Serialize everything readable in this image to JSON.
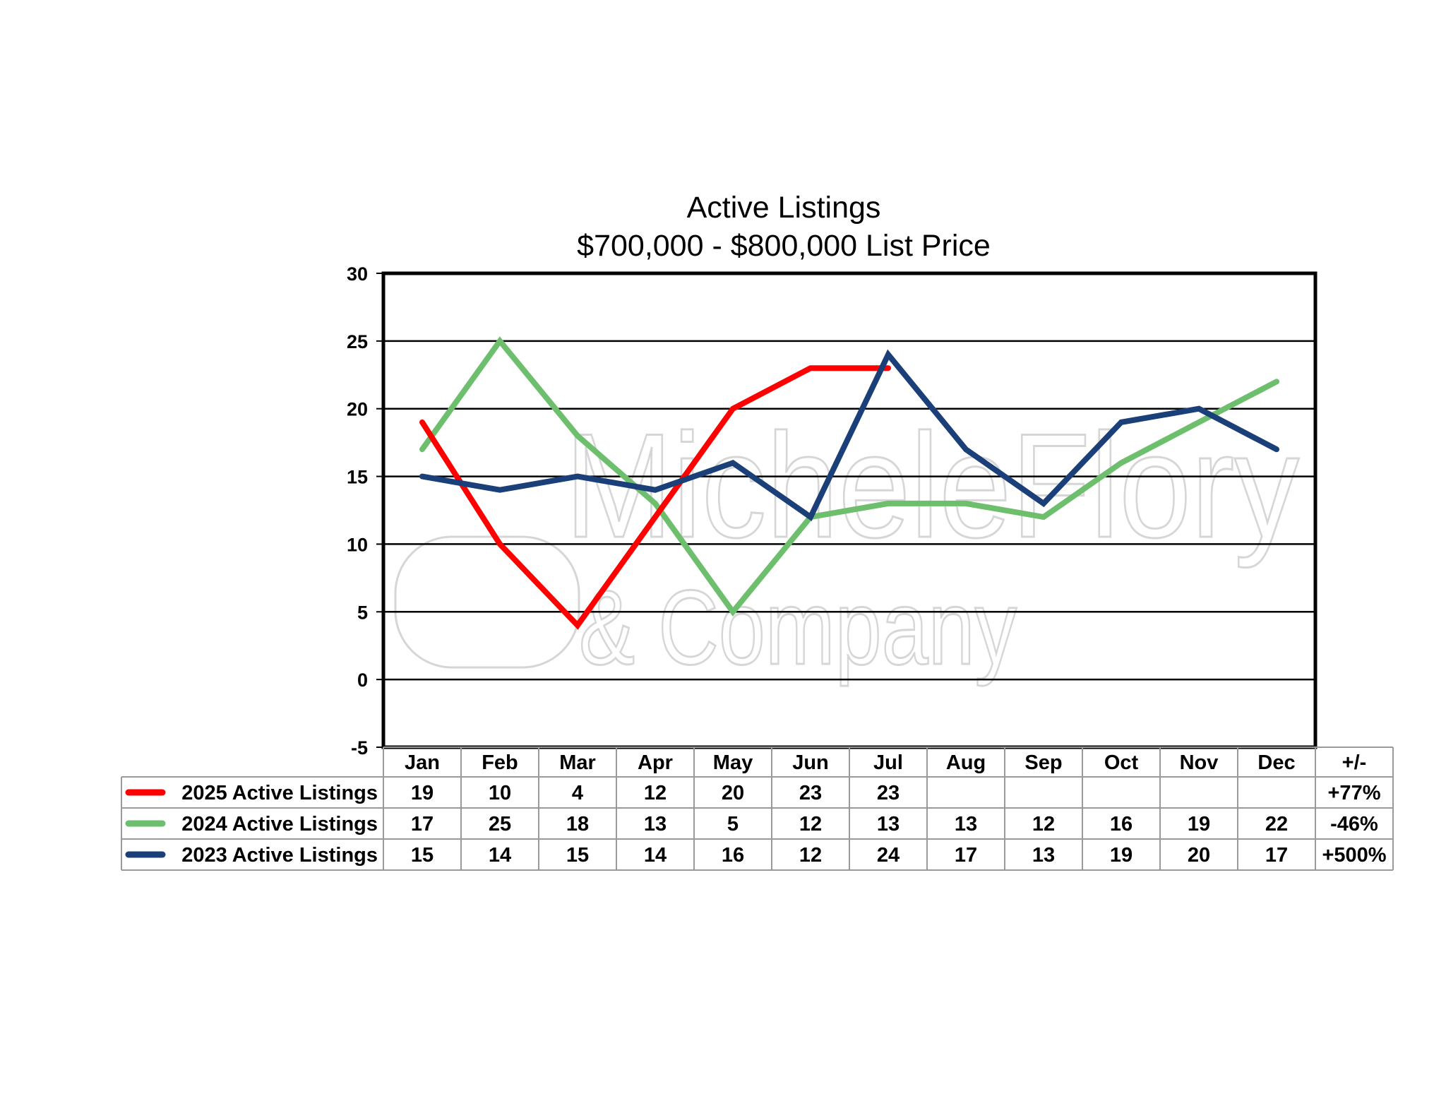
{
  "chart_data": {
    "type": "line",
    "title": "Active Listings",
    "subtitle": "$700,000 - $800,000 List Price",
    "categories": [
      "Jan",
      "Feb",
      "Mar",
      "Apr",
      "May",
      "Jun",
      "Jul",
      "Aug",
      "Sep",
      "Oct",
      "Nov",
      "Dec"
    ],
    "ylim": [
      -5,
      30
    ],
    "yticks": [
      30,
      25,
      20,
      15,
      10,
      5,
      0,
      -5
    ],
    "grid": true,
    "change_header": "+/-",
    "series": [
      {
        "name": "2025 Active Listings",
        "color": "#ff0000",
        "values": [
          19,
          10,
          4,
          12,
          20,
          23,
          23,
          null,
          null,
          null,
          null,
          null
        ],
        "change": "+77%"
      },
      {
        "name": "2024 Active Listings",
        "color": "#6dbf6d",
        "values": [
          17,
          25,
          18,
          13,
          5,
          12,
          13,
          13,
          12,
          16,
          19,
          22
        ],
        "change": "-46%"
      },
      {
        "name": "2023 Active Listings",
        "color": "#1b3f78",
        "values": [
          15,
          14,
          15,
          14,
          16,
          12,
          24,
          17,
          13,
          19,
          20,
          17
        ],
        "change": "+500%"
      }
    ]
  },
  "watermark": {
    "line1": "MicheleFlory",
    "line2": "& Company"
  }
}
